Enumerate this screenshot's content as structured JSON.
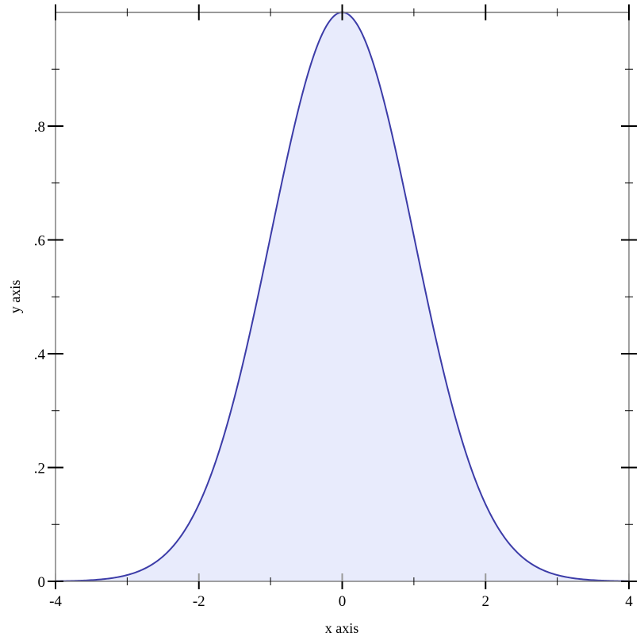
{
  "chart_data": {
    "type": "area",
    "function": "exp(-x^2/2)",
    "x": [
      -4,
      -3.5,
      -3,
      -2.5,
      -2,
      -1.5,
      -1,
      -0.5,
      0,
      0.5,
      1,
      1.5,
      2,
      2.5,
      3,
      3.5,
      4
    ],
    "y": [
      0.0003,
      0.0022,
      0.0111,
      0.0439,
      0.1353,
      0.3247,
      0.6065,
      0.8825,
      1.0,
      0.8825,
      0.6065,
      0.3247,
      0.1353,
      0.0439,
      0.0111,
      0.0022,
      0.0003
    ],
    "xlabel": "x axis",
    "ylabel": "y axis",
    "xlim": [
      -4,
      4
    ],
    "ylim": [
      0,
      1
    ],
    "x_ticks": [
      {
        "v": -4,
        "label": "-4"
      },
      {
        "v": -2,
        "label": "-2"
      },
      {
        "v": 0,
        "label": "0"
      },
      {
        "v": 2,
        "label": "2"
      },
      {
        "v": 4,
        "label": "4"
      }
    ],
    "x_minor_ticks": [
      -3,
      -1,
      1,
      3
    ],
    "y_ticks": [
      {
        "v": 0,
        "label": "0"
      },
      {
        "v": 0.2,
        "label": ".2"
      },
      {
        "v": 0.4,
        "label": ".4"
      },
      {
        "v": 0.6,
        "label": ".6"
      },
      {
        "v": 0.8,
        "label": ".8"
      }
    ],
    "y_minor_ticks": [
      0.1,
      0.3,
      0.5,
      0.7,
      0.9
    ],
    "grid": false,
    "colors": {
      "line": "#3c3ca8",
      "fill": "#e8ebfc",
      "frame": "#808080"
    }
  }
}
